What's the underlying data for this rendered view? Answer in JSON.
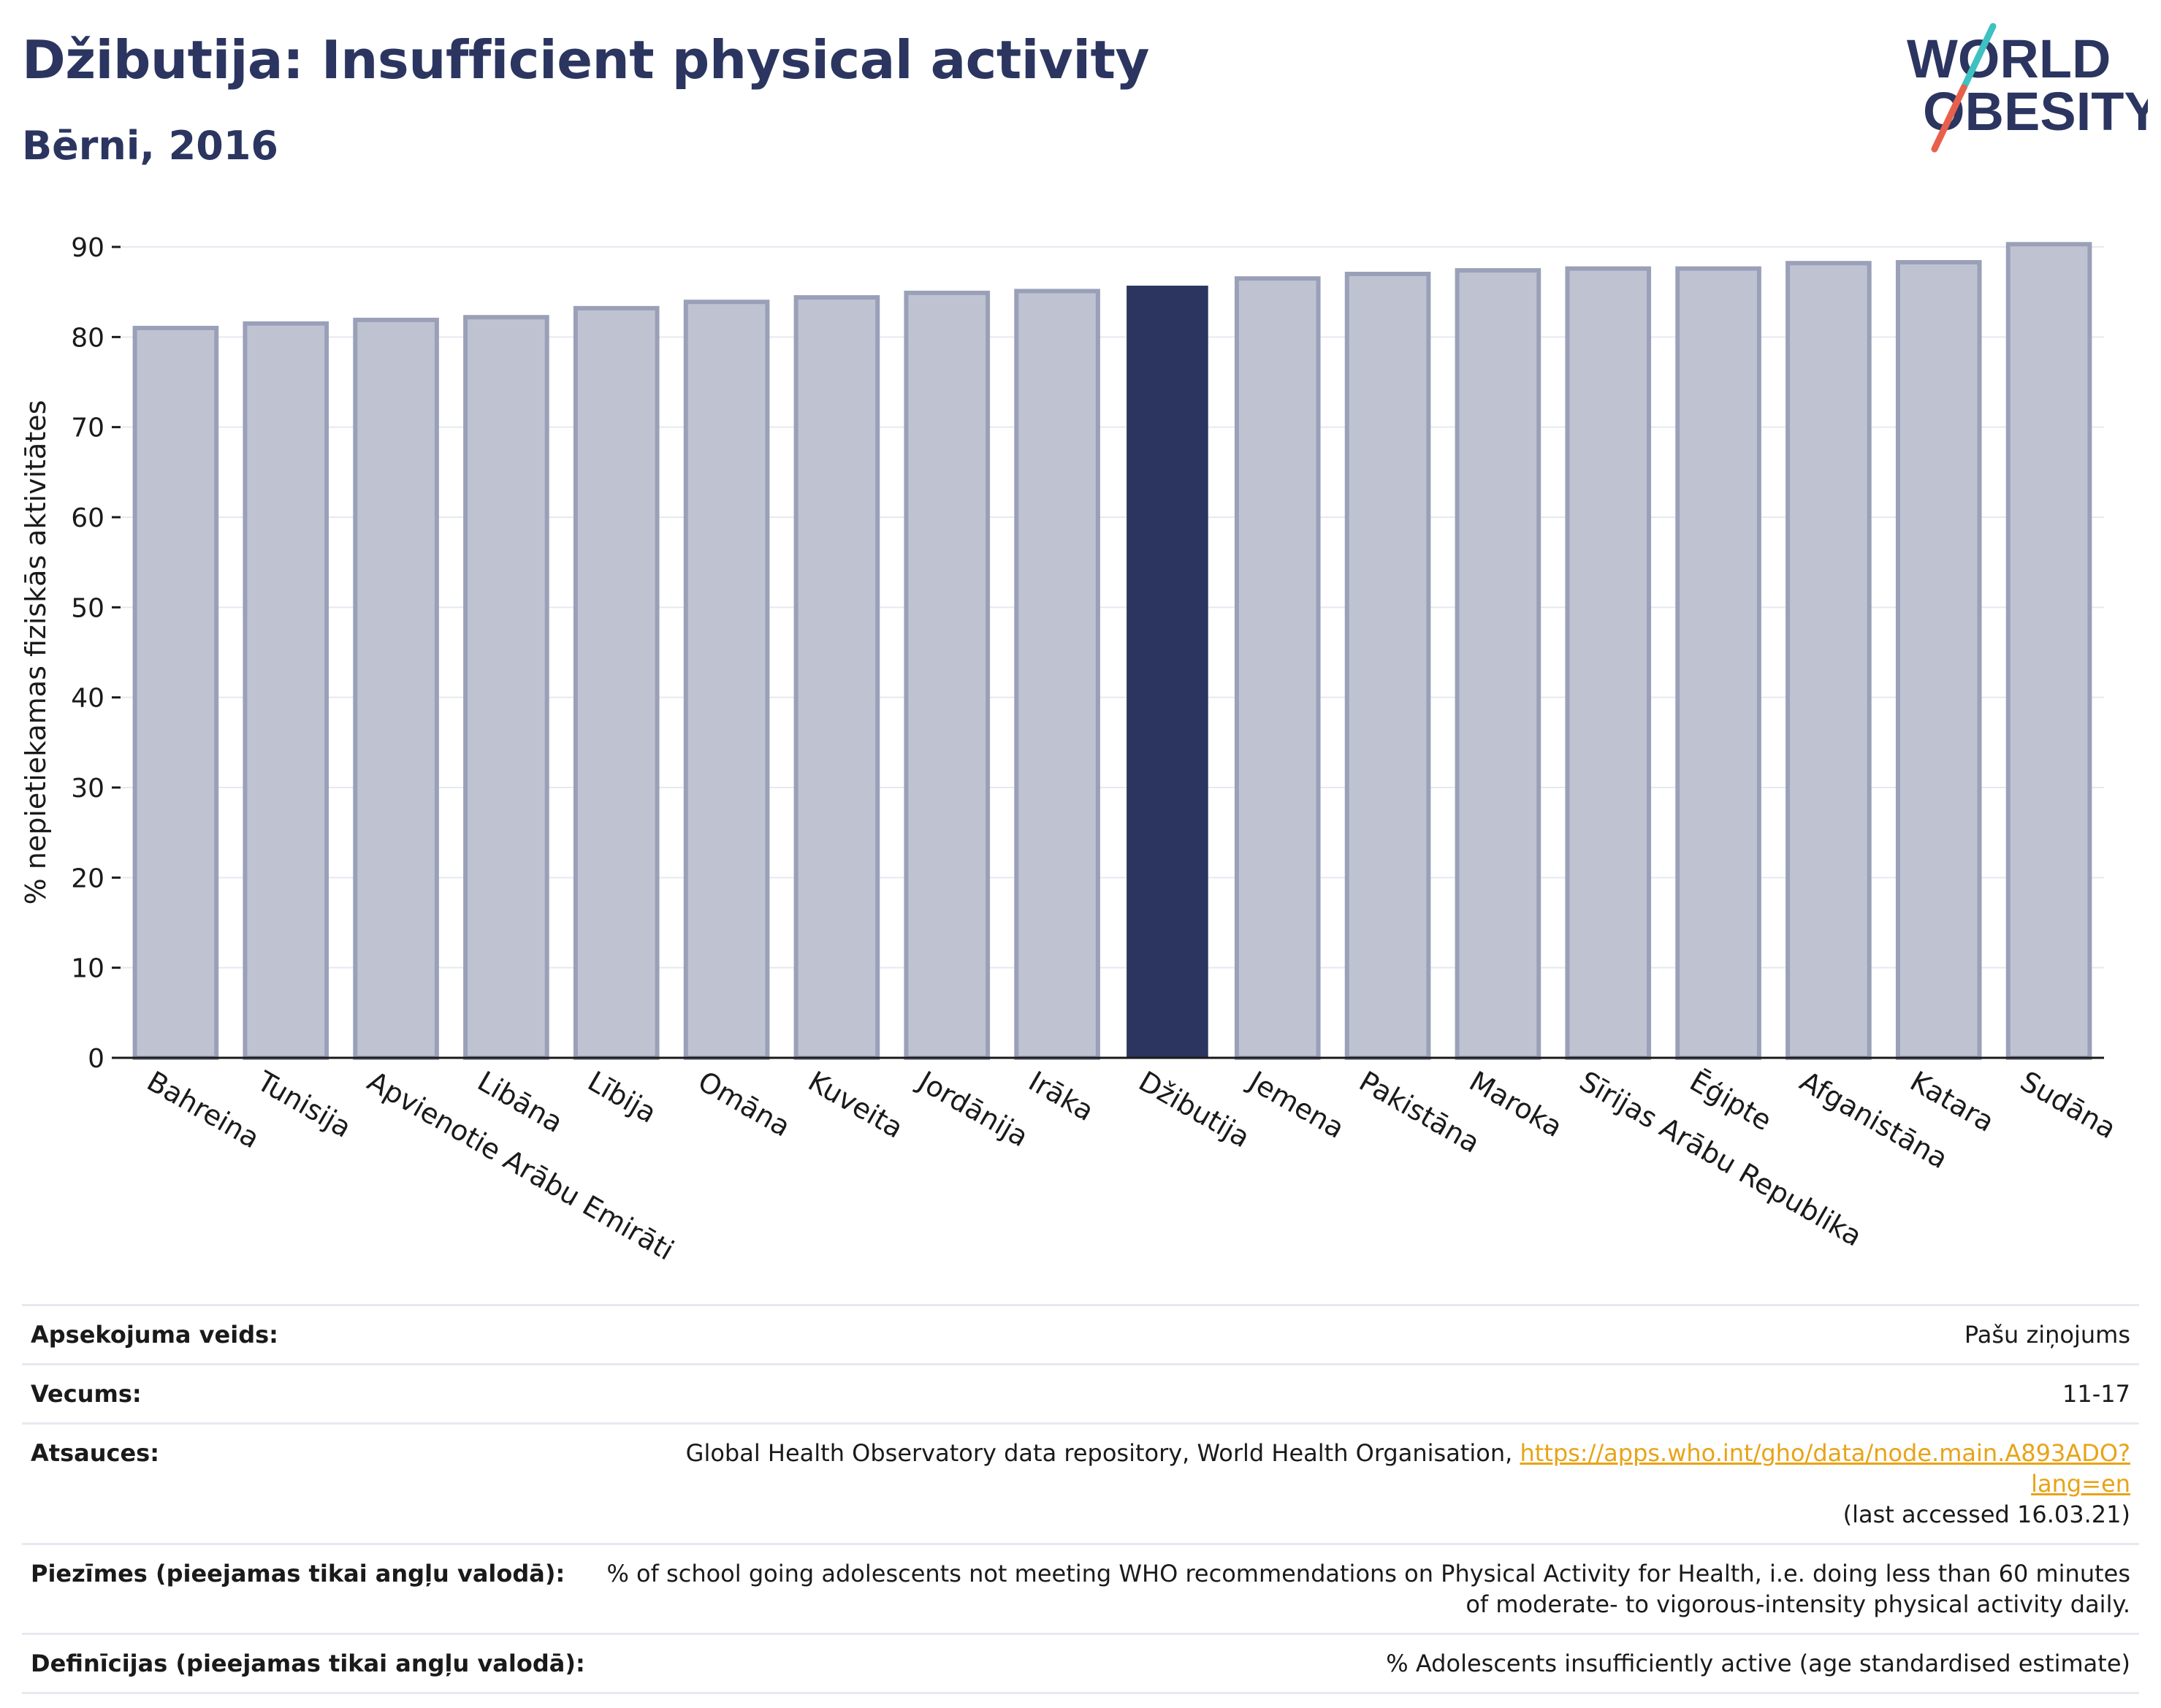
{
  "header": {
    "title": "Džibutija: Insufficient physical activity",
    "subtitle": "Bērni, 2016"
  },
  "logo": {
    "line1": "WORLD",
    "line2": "OBESITY",
    "text_color": "#2b3560",
    "accent_teal": "#3ec1c1",
    "accent_red": "#e8604c"
  },
  "colors": {
    "bar": "#bfc3d1",
    "bar_border": "#9aa0b8",
    "highlight": "#2b3560"
  },
  "chart_data": {
    "type": "bar",
    "ylabel": "% nepietiekamas fiziskās aktivitātes",
    "xlabel": "",
    "ylim": [
      0,
      90
    ],
    "yticks": [
      0,
      10,
      20,
      30,
      40,
      50,
      60,
      70,
      80,
      90
    ],
    "grid": true,
    "highlight": "Džibutija",
    "categories": [
      "Bahreina",
      "Tunisija",
      "Apvienotie Arābu Emirāti",
      "Libāna",
      "Lībija",
      "Omāna",
      "Kuveita",
      "Jordānija",
      "Irāka",
      "Džibutija",
      "Jemena",
      "Pakistāna",
      "Maroka",
      "Sīrijas Arābu Republika",
      "Ēģipte",
      "Afganistāna",
      "Katara",
      "Sudāna"
    ],
    "values": [
      81.0,
      81.5,
      81.9,
      82.2,
      83.2,
      83.9,
      84.4,
      84.9,
      85.1,
      85.7,
      86.5,
      87.0,
      87.4,
      87.6,
      87.6,
      88.2,
      88.3,
      90.3
    ]
  },
  "meta": [
    {
      "key": "Apsekojuma veids:",
      "value": "Pašu ziņojums"
    },
    {
      "key": "Vecums:",
      "value": "11-17"
    },
    {
      "key": "Atsauces:",
      "value": "Global Health Observatory data repository, World Health Organisation,",
      "link": "https://apps.who.int/gho/data/node.main.A893ADO?lang=en",
      "note": "(last accessed 16.03.21)"
    },
    {
      "key": "Piezīmes (pieejamas tikai angļu valodā):",
      "value": "% of school going adolescents not meeting WHO recommendations on Physical Activity for Health, i.e. doing less than 60 minutes of moderate- to vigorous-intensity physical activity daily."
    },
    {
      "key": "Definīcijas (pieejamas tikai angļu valodā):",
      "value": "% Adolescents insufficiently active (age standardised estimate)"
    }
  ]
}
